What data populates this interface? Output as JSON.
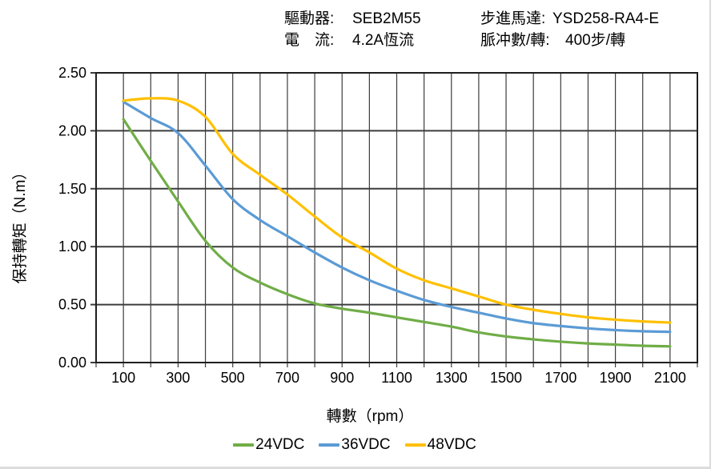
{
  "header": {
    "driver_label": "驅動器:",
    "driver_value": "SEB2M55",
    "motor_label": "步進馬達:",
    "motor_value": "YSD258-RA4-E",
    "current_label": "電　流:",
    "current_value": "4.2A恆流",
    "pulses_label": "脈冲數/轉:",
    "pulses_value": "400步/轉"
  },
  "chart_data": {
    "type": "line",
    "title": "",
    "xlabel": "轉數（rpm）",
    "ylabel": "保持轉矩（N.m）",
    "xlim": [
      0,
      2200
    ],
    "ylim": [
      0,
      2.5
    ],
    "grid": true,
    "x_grid_step": 100,
    "y_grid_step": 0.5,
    "legend_position": "bottom",
    "x_tick_values": [
      100,
      300,
      500,
      700,
      900,
      1100,
      1300,
      1500,
      1700,
      1900,
      2100
    ],
    "x_tick_labels": [
      "100",
      "300",
      "500",
      "700",
      "900",
      "1100",
      "1300",
      "1500",
      "1700",
      "1900",
      "2100"
    ],
    "y_tick_values": [
      0,
      0.5,
      1,
      1.5,
      2,
      2.5
    ],
    "y_tick_labels": [
      "0.00",
      "0.50",
      "1.00",
      "1.50",
      "2.00",
      "2.50"
    ],
    "x": [
      100,
      200,
      300,
      400,
      500,
      600,
      700,
      800,
      900,
      1000,
      1100,
      1200,
      1300,
      1400,
      1500,
      1600,
      1700,
      1800,
      1900,
      2000,
      2100
    ],
    "series": [
      {
        "name": "24VDC",
        "color": "#70AD47",
        "values": [
          2.1,
          1.74,
          1.39,
          1.05,
          0.82,
          0.69,
          0.59,
          0.51,
          0.465,
          0.43,
          0.39,
          0.35,
          0.31,
          0.26,
          0.225,
          0.2,
          0.18,
          0.165,
          0.155,
          0.145,
          0.14
        ]
      },
      {
        "name": "36VDC",
        "color": "#5B9BD5",
        "values": [
          2.25,
          2.11,
          1.98,
          1.7,
          1.41,
          1.23,
          1.09,
          0.95,
          0.82,
          0.71,
          0.62,
          0.54,
          0.48,
          0.43,
          0.38,
          0.34,
          0.315,
          0.295,
          0.28,
          0.27,
          0.265
        ]
      },
      {
        "name": "48VDC",
        "color": "#FFC000",
        "values": [
          2.26,
          2.28,
          2.26,
          2.12,
          1.8,
          1.62,
          1.45,
          1.26,
          1.08,
          0.95,
          0.81,
          0.71,
          0.64,
          0.57,
          0.5,
          0.455,
          0.42,
          0.39,
          0.37,
          0.355,
          0.345
        ]
      }
    ]
  },
  "colors": {
    "gridline": "#3C3C3C",
    "frame": "#1F1F1F",
    "text": "#000000",
    "page_edge": "#DCDCDC"
  }
}
